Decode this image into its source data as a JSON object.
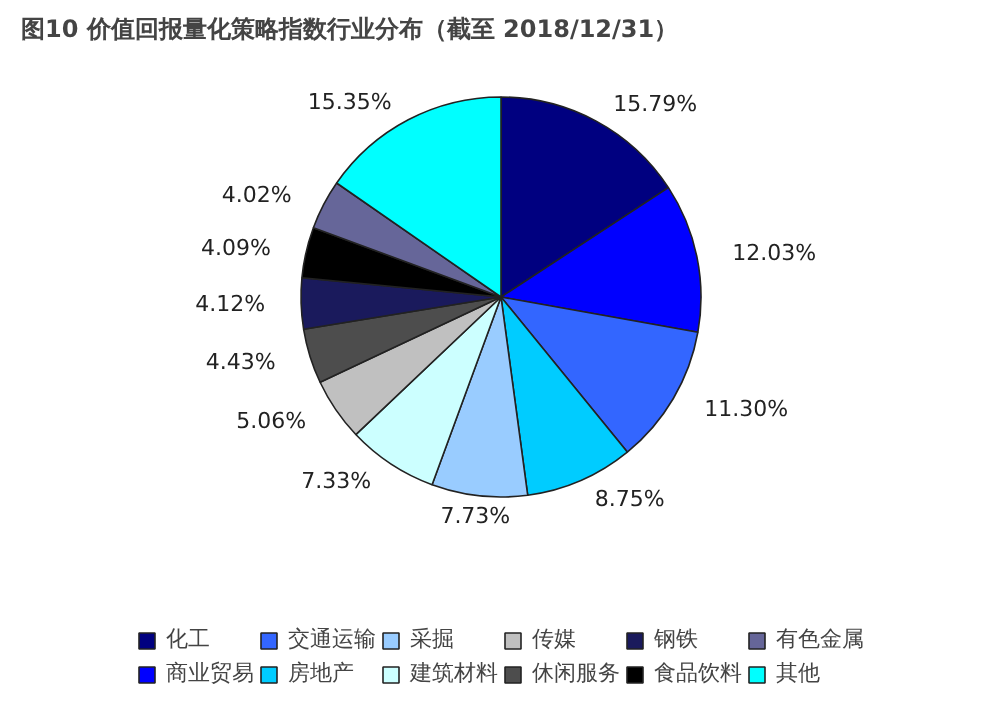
{
  "chart_data": {
    "type": "pie",
    "title": "图10 价值回报量化策略指数行业分布（截至 2018/12/31）",
    "categories": [
      "化工",
      "商业贸易",
      "交通运输",
      "房地产",
      "采掘",
      "建筑材料",
      "传媒",
      "休闲服务",
      "钢铁",
      "食品饮料",
      "有色金属",
      "其他"
    ],
    "values": [
      15.79,
      12.03,
      11.3,
      8.75,
      7.73,
      7.33,
      5.06,
      4.43,
      4.12,
      4.09,
      4.02,
      15.35
    ],
    "colors": [
      "#000080",
      "#0000ff",
      "#3366ff",
      "#00ccff",
      "#99ccff",
      "#ccffff",
      "#c0c0c0",
      "#4d4d4d",
      "#1a1a5c",
      "#000000",
      "#666699",
      "#00ffff"
    ],
    "value_labels": [
      "15.79%",
      "12.03%",
      "11.30%",
      "8.75%",
      "7.73%",
      "7.33%",
      "5.06%",
      "4.43%",
      "4.12%",
      "4.09%",
      "4.02%",
      "15.35%"
    ],
    "legend": "bottom"
  }
}
